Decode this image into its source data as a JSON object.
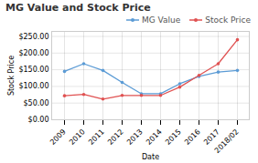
{
  "chart_data": {
    "type": "line",
    "title": "MG Value and Stock Price",
    "xlabel": "Date",
    "ylabel": "Stock Price",
    "categories": [
      "2009",
      "2010",
      "2011",
      "2012",
      "2013",
      "2014",
      "2015",
      "2016",
      "2017",
      "2018/02"
    ],
    "series": [
      {
        "name": "MG Value",
        "color": "#5b9bd5",
        "marker": "circle",
        "values": [
          145,
          168,
          148,
          112,
          78,
          78,
          108,
          130,
          143,
          148
        ]
      },
      {
        "name": "Stock Price",
        "color": "#e05252",
        "marker": "circle",
        "values": [
          72,
          76,
          62,
          73,
          73,
          73,
          98,
          133,
          168,
          240
        ]
      }
    ],
    "ylim": [
      0,
      265
    ],
    "yticks": [
      {
        "value": 0,
        "label": "$0.00"
      },
      {
        "value": 50,
        "label": "$50.00"
      },
      {
        "value": 100,
        "label": "$100.00"
      },
      {
        "value": 150,
        "label": "$150.00"
      },
      {
        "value": 200,
        "label": "$200.00"
      },
      {
        "value": 250,
        "label": "$250.00"
      }
    ],
    "grid": true,
    "legend": "upper right"
  }
}
